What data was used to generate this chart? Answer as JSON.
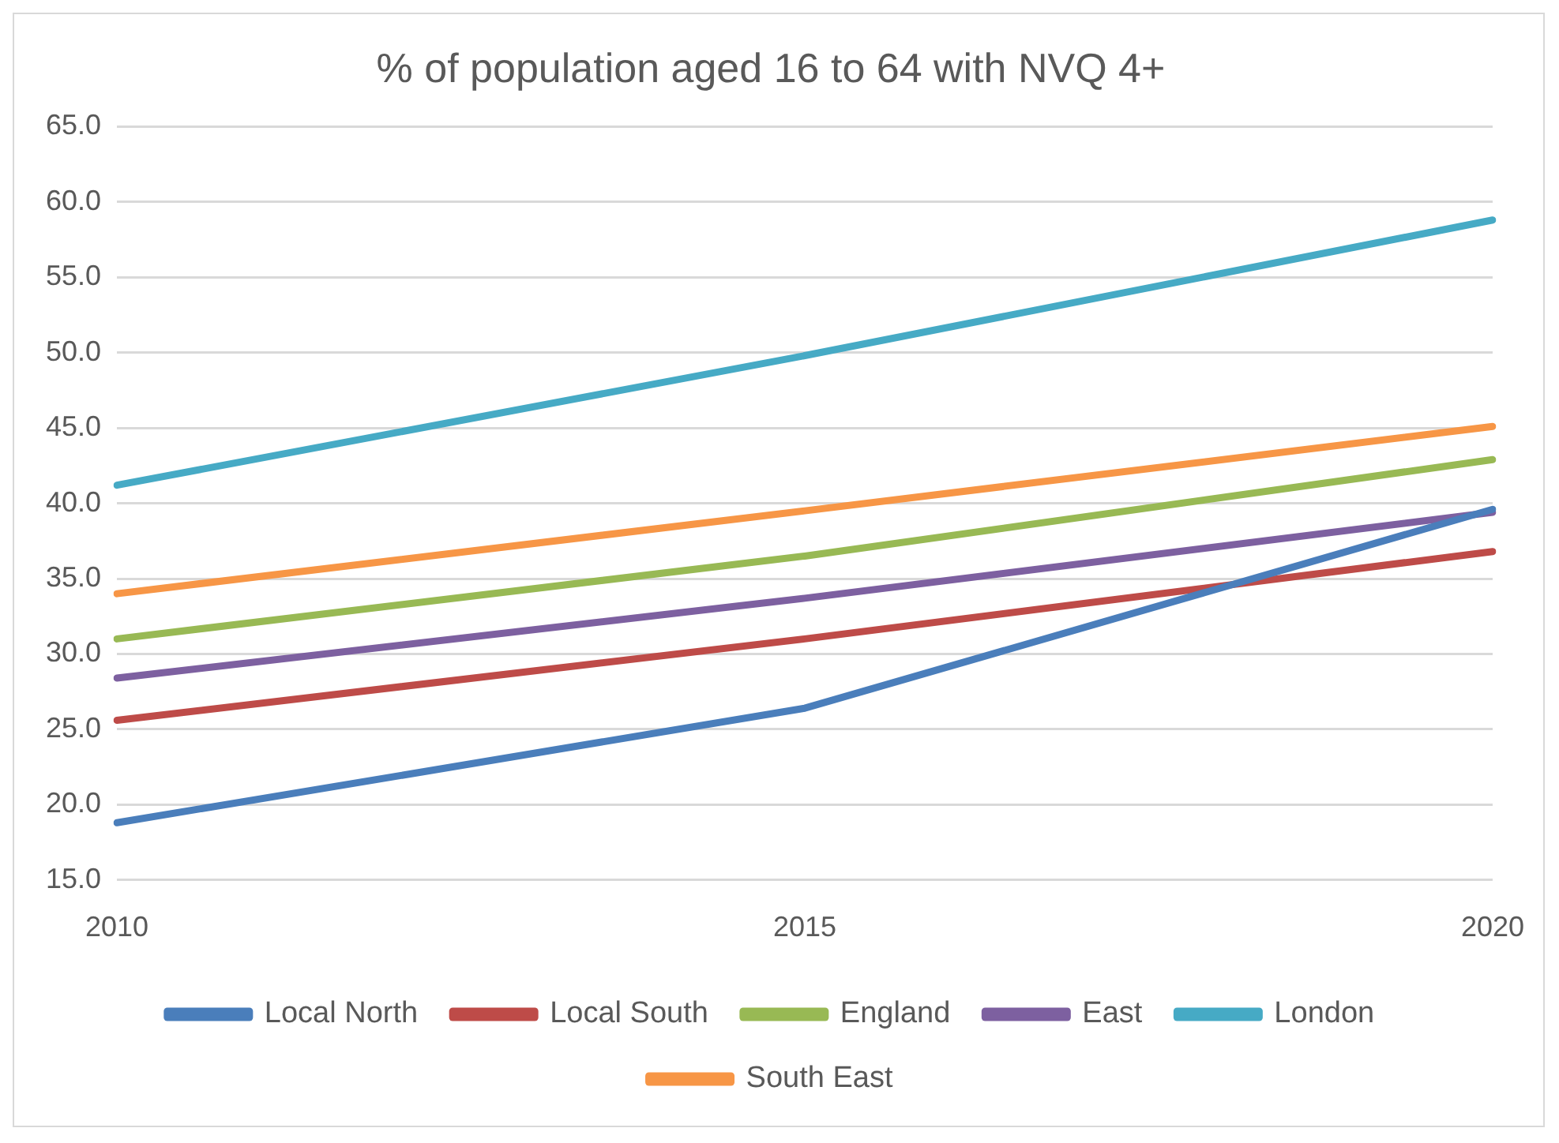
{
  "chart_data": {
    "type": "line",
    "title": "% of population aged 16 to 64 with NVQ 4+",
    "categories": [
      "2010",
      "2015",
      "2020"
    ],
    "series": [
      {
        "name": "Local North",
        "color": "#4a7ebb",
        "values": [
          18.8,
          26.4,
          39.6
        ]
      },
      {
        "name": "Local South",
        "color": "#be4b48",
        "values": [
          25.6,
          31.0,
          36.8
        ]
      },
      {
        "name": "England",
        "color": "#98b954",
        "values": [
          31.0,
          36.5,
          42.9
        ]
      },
      {
        "name": "East",
        "color": "#7d60a0",
        "values": [
          28.4,
          33.7,
          39.4
        ]
      },
      {
        "name": "London",
        "color": "#46aac5",
        "values": [
          41.2,
          49.8,
          58.8
        ]
      },
      {
        "name": "South East",
        "color": "#f79646",
        "values": [
          34.0,
          39.5,
          45.1
        ]
      }
    ],
    "ylim": [
      15,
      65
    ],
    "yticks": [
      {
        "value": 15,
        "label": "15.0"
      },
      {
        "value": 20,
        "label": "20.0"
      },
      {
        "value": 25,
        "label": "25.0"
      },
      {
        "value": 30,
        "label": "30.0"
      },
      {
        "value": 35,
        "label": "35.0"
      },
      {
        "value": 40,
        "label": "40.0"
      },
      {
        "value": 45,
        "label": "45.0"
      },
      {
        "value": 50,
        "label": "50.0"
      },
      {
        "value": 55,
        "label": "55.0"
      },
      {
        "value": 60,
        "label": "60.0"
      },
      {
        "value": 65,
        "label": "65.0"
      }
    ],
    "grid": "y",
    "legend": "bottom",
    "marker": "none",
    "line_style": "solid"
  }
}
